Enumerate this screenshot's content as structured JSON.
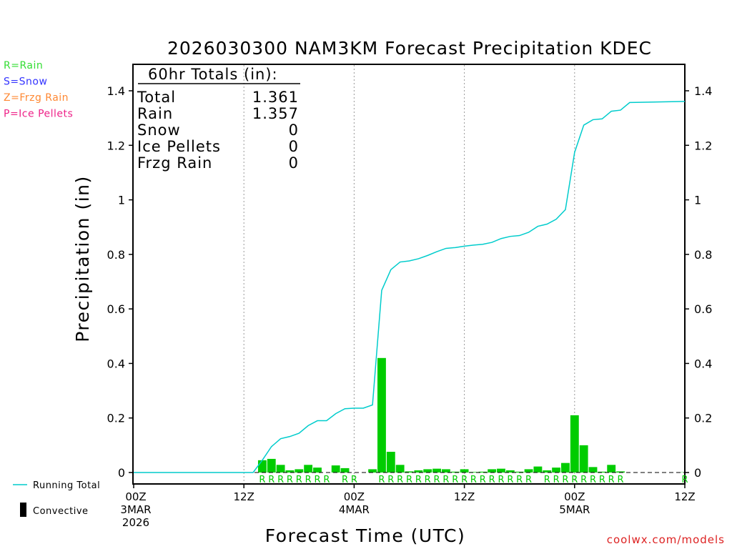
{
  "chart_data": {
    "type": "bar",
    "title": "2026030300 NAM3KM Forecast Precipitation KDEC",
    "xlabel": "Forecast Time (UTC)",
    "ylabel": "Precipitation (in)",
    "ylim": [
      0,
      1.5
    ],
    "xlim": [
      0,
      60
    ],
    "y_ticks": [
      0,
      0.2,
      0.4,
      0.6,
      0.8,
      1,
      1.2,
      1.4
    ],
    "y_tick_labels": [
      "0",
      "0.2",
      "0.4",
      "0.6",
      "0.8",
      "1",
      "1.2",
      "1.4"
    ],
    "x_ticks": [
      {
        "hour": 0,
        "lines": [
          "00Z",
          "3MAR",
          "2026"
        ]
      },
      {
        "hour": 12,
        "lines": [
          "12Z"
        ]
      },
      {
        "hour": 24,
        "lines": [
          "00Z",
          "4MAR"
        ]
      },
      {
        "hour": 36,
        "lines": [
          "12Z"
        ]
      },
      {
        "hour": 48,
        "lines": [
          "00Z",
          "5MAR"
        ]
      },
      {
        "hour": 60,
        "lines": [
          "12Z"
        ]
      }
    ],
    "series": [
      {
        "name": "Hourly Precipitation",
        "kind": "bar",
        "color": "#00cc00",
        "hours": [
          14,
          15,
          16,
          17,
          18,
          19,
          20,
          21,
          22,
          23,
          26,
          27,
          28,
          29,
          30,
          31,
          32,
          33,
          34,
          35,
          36,
          37,
          38,
          39,
          40,
          41,
          42,
          43,
          44,
          45,
          46,
          47,
          48,
          49,
          50,
          51,
          52,
          53,
          60
        ],
        "values": [
          0.045,
          0.05,
          0.028,
          0.008,
          0.012,
          0.028,
          0.018,
          0.0,
          0.026,
          0.016,
          0.012,
          0.42,
          0.076,
          0.028,
          0.004,
          0.008,
          0.012,
          0.014,
          0.012,
          0.003,
          0.012,
          0.002,
          0.003,
          0.012,
          0.014,
          0.008,
          0.003,
          0.012,
          0.022,
          0.008,
          0.018,
          0.035,
          0.21,
          0.1,
          0.02,
          0.003,
          0.028,
          0.004,
          0.001
        ]
      },
      {
        "name": "Running Total",
        "kind": "line",
        "color": "#00cccc",
        "hours": [
          0,
          13,
          14,
          15,
          16,
          17,
          18,
          19,
          20,
          21,
          22,
          23,
          24,
          25,
          26,
          27,
          28,
          29,
          30,
          31,
          32,
          33,
          34,
          35,
          36,
          37,
          38,
          39,
          40,
          41,
          42,
          43,
          44,
          45,
          46,
          47,
          48,
          49,
          50,
          51,
          52,
          53,
          54,
          60
        ],
        "values": [
          0,
          0,
          0.045,
          0.095,
          0.124,
          0.132,
          0.144,
          0.172,
          0.19,
          0.19,
          0.216,
          0.234,
          0.236,
          0.236,
          0.248,
          0.668,
          0.744,
          0.772,
          0.776,
          0.784,
          0.796,
          0.81,
          0.822,
          0.825,
          0.83,
          0.834,
          0.837,
          0.844,
          0.858,
          0.866,
          0.869,
          0.881,
          0.903,
          0.911,
          0.929,
          0.964,
          1.174,
          1.274,
          1.294,
          1.297,
          1.325,
          1.329,
          1.357,
          1.361
        ]
      }
    ],
    "precip_types": {
      "hours": [
        14,
        15,
        16,
        17,
        18,
        19,
        20,
        21,
        23,
        24,
        27,
        28,
        29,
        30,
        31,
        32,
        33,
        34,
        35,
        36,
        37,
        38,
        39,
        40,
        41,
        42,
        43,
        45,
        46,
        47,
        48,
        49,
        50,
        51,
        52,
        53,
        60
      ],
      "labels": [
        "R",
        "R",
        "R",
        "R",
        "R",
        "R",
        "R",
        "R",
        "R",
        "R",
        "R",
        "R",
        "R",
        "R",
        "R",
        "R",
        "R",
        "R",
        "R",
        "R",
        "R",
        "R",
        "R",
        "R",
        "R",
        "R",
        "R",
        "R",
        "R",
        "R",
        "R",
        "R",
        "R",
        "R",
        "R",
        "R",
        "R"
      ],
      "color": "#00cc00"
    },
    "totals_box": {
      "heading": "60hr Totals (in):",
      "rows": [
        {
          "label": "Total",
          "value": "1.361"
        },
        {
          "label": "Rain",
          "value": "1.357"
        },
        {
          "label": "Snow",
          "value": "0"
        },
        {
          "label": "Ice Pellets",
          "value": "0"
        },
        {
          "label": "Frzg Rain",
          "value": "0"
        }
      ]
    }
  },
  "type_legend": [
    {
      "text": "R=Rain",
      "color": "#33dd33"
    },
    {
      "text": "S=Snow",
      "color": "#3333ff"
    },
    {
      "text": "Z=Frzg Rain",
      "color": "#ff8833"
    },
    {
      "text": "P=Ice Pellets",
      "color": "#ee2288"
    }
  ],
  "bottom_legend": {
    "running_total": "Running Total",
    "convective": "Convective"
  },
  "credit": "coolwx.com/models"
}
